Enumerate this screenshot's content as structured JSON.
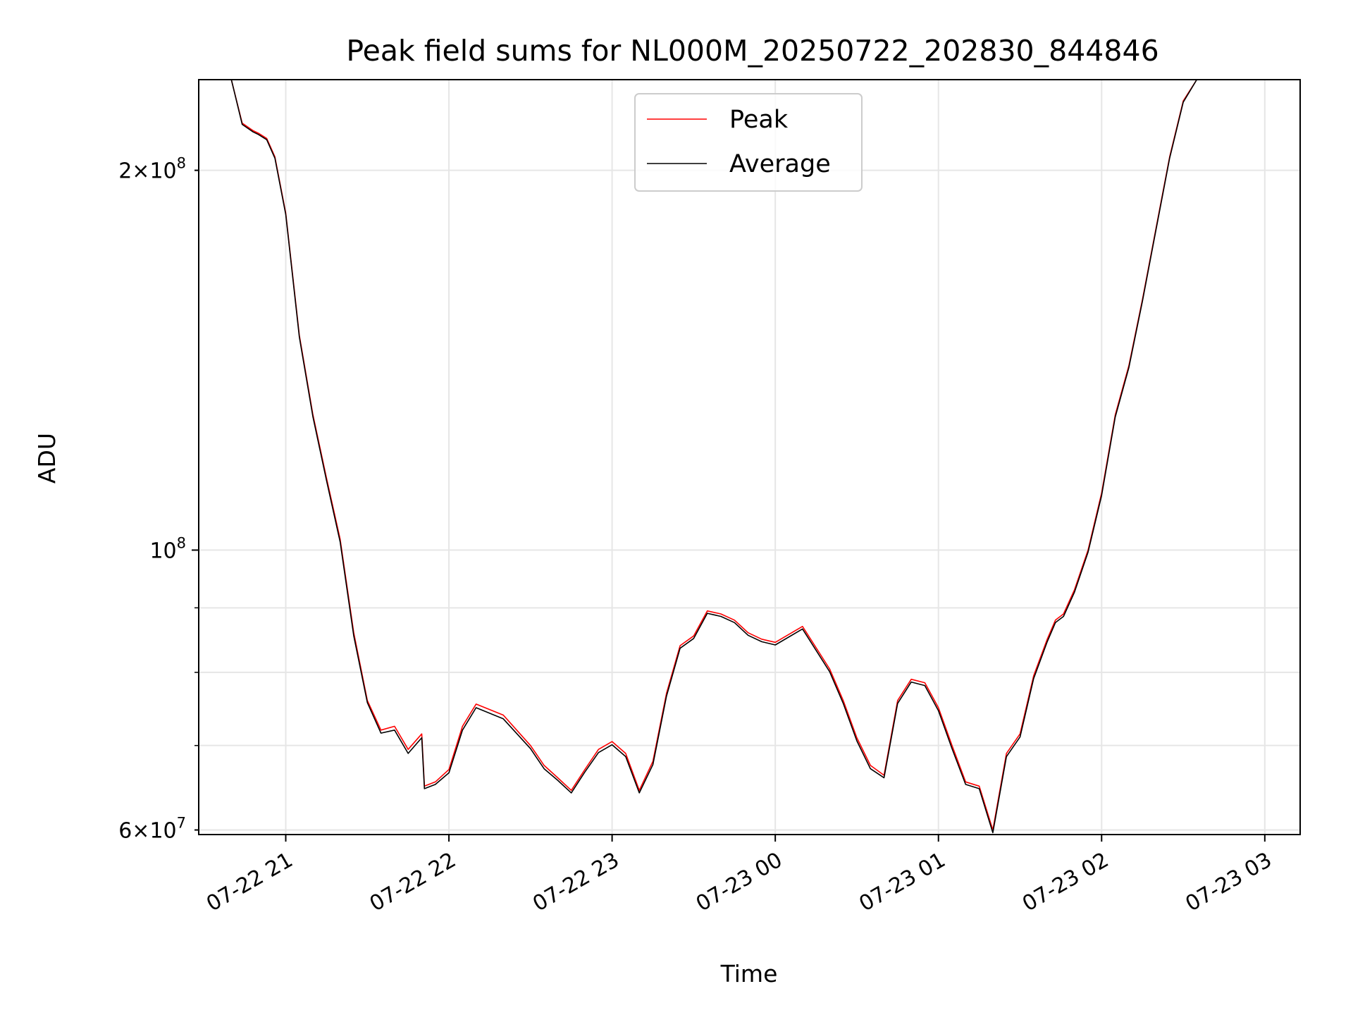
{
  "chart_data": {
    "type": "line",
    "title": "Peak field sums for NL000M_20250722_202830_844846",
    "xlabel": "Time",
    "ylabel": "ADU",
    "y_scale": "log",
    "ylim": [
      59500000,
      236000000
    ],
    "xlim": [
      "2025-07-22 20:28",
      "2025-07-23 03:13"
    ],
    "grid": true,
    "legend_position": "top-center",
    "x_ticks": [
      {
        "t": "2025-07-22 21:00",
        "label": "07-22 21"
      },
      {
        "t": "2025-07-22 22:00",
        "label": "07-22 22"
      },
      {
        "t": "2025-07-22 23:00",
        "label": "07-22 23"
      },
      {
        "t": "2025-07-23 00:00",
        "label": "07-23 00"
      },
      {
        "t": "2025-07-23 01:00",
        "label": "07-23 01"
      },
      {
        "t": "2025-07-23 02:00",
        "label": "07-23 02"
      },
      {
        "t": "2025-07-23 03:00",
        "label": "07-23 03"
      }
    ],
    "y_ticks_major": [
      {
        "value": 100000000,
        "mantissa": "",
        "exponent": "8"
      }
    ],
    "y_ticks_minor_labeled": [
      {
        "value": 60000000,
        "mantissa": "6",
        "exponent": "7"
      },
      {
        "value": 200000000,
        "mantissa": "2",
        "exponent": "8"
      }
    ],
    "y_minor_grid": [
      60000000,
      70000000,
      80000000,
      90000000,
      200000000
    ],
    "series": [
      {
        "name": "Peak",
        "color": "#ff0000",
        "x": [
          "2025-07-22 20:28",
          "2025-07-22 20:40",
          "2025-07-22 20:44",
          "2025-07-22 20:48",
          "2025-07-22 20:50",
          "2025-07-22 20:53",
          "2025-07-22 20:56",
          "2025-07-22 21:00",
          "2025-07-22 21:05",
          "2025-07-22 21:10",
          "2025-07-22 21:15",
          "2025-07-22 21:20",
          "2025-07-22 21:25",
          "2025-07-22 21:30",
          "2025-07-22 21:35",
          "2025-07-22 21:40",
          "2025-07-22 21:45",
          "2025-07-22 21:50",
          "2025-07-22 21:51",
          "2025-07-22 21:55",
          "2025-07-22 22:00",
          "2025-07-22 22:05",
          "2025-07-22 22:10",
          "2025-07-22 22:20",
          "2025-07-22 22:30",
          "2025-07-22 22:35",
          "2025-07-22 22:40",
          "2025-07-22 22:45",
          "2025-07-22 22:50",
          "2025-07-22 22:55",
          "2025-07-22 23:00",
          "2025-07-22 23:05",
          "2025-07-22 23:10",
          "2025-07-22 23:15",
          "2025-07-22 23:20",
          "2025-07-22 23:25",
          "2025-07-22 23:30",
          "2025-07-22 23:35",
          "2025-07-22 23:40",
          "2025-07-22 23:45",
          "2025-07-22 23:50",
          "2025-07-22 23:55",
          "2025-07-23 00:00",
          "2025-07-23 00:10",
          "2025-07-23 00:20",
          "2025-07-23 00:25",
          "2025-07-23 00:30",
          "2025-07-23 00:35",
          "2025-07-23 00:40",
          "2025-07-23 00:45",
          "2025-07-23 00:50",
          "2025-07-23 00:55",
          "2025-07-23 01:00",
          "2025-07-23 01:05",
          "2025-07-23 01:10",
          "2025-07-23 01:15",
          "2025-07-23 01:20",
          "2025-07-23 01:25",
          "2025-07-23 01:30",
          "2025-07-23 01:35",
          "2025-07-23 01:40",
          "2025-07-23 01:43",
          "2025-07-23 01:46",
          "2025-07-23 01:50",
          "2025-07-23 01:55",
          "2025-07-23 02:00",
          "2025-07-23 02:05",
          "2025-07-23 02:10",
          "2025-07-23 02:15",
          "2025-07-23 02:20",
          "2025-07-23 02:25",
          "2025-07-23 02:30",
          "2025-07-23 02:35",
          "2025-07-23 02:40",
          "2025-07-23 02:45",
          "2025-07-23 02:50",
          "2025-07-23 02:55",
          "2025-07-23 02:58",
          "2025-07-23 03:00",
          "2025-07-23 03:13"
        ],
        "y": [
          236000000,
          236000000,
          218000000,
          215000000,
          214000000,
          212000000,
          205000000,
          185000000,
          148000000,
          128000000,
          114000000,
          102000000,
          86000000,
          76000000,
          72000000,
          72500000,
          69500000,
          71500000,
          65000000,
          65500000,
          67000000,
          72500000,
          75500000,
          74000000,
          70000000,
          67500000,
          66000000,
          64500000,
          67000000,
          69500000,
          70500000,
          69000000,
          64500000,
          68000000,
          77000000,
          84000000,
          85500000,
          89500000,
          89000000,
          88000000,
          86000000,
          85000000,
          84500000,
          87000000,
          80500000,
          76000000,
          71000000,
          67500000,
          66300000,
          76000000,
          79000000,
          78500000,
          75000000,
          70000000,
          65500000,
          65000000,
          60000000,
          69000000,
          71500000,
          79500000,
          85000000,
          88000000,
          89000000,
          93000000,
          100000000,
          111000000,
          128000000,
          140000000,
          158000000,
          180000000,
          205000000,
          227000000,
          236000000,
          236000000,
          236000000,
          236000000,
          236000000,
          236000000,
          236000000,
          236000000
        ]
      },
      {
        "name": "Average",
        "color": "#000000",
        "x": [
          "2025-07-22 20:28",
          "2025-07-22 20:40",
          "2025-07-22 20:44",
          "2025-07-22 20:48",
          "2025-07-22 20:50",
          "2025-07-22 20:53",
          "2025-07-22 20:56",
          "2025-07-22 21:00",
          "2025-07-22 21:05",
          "2025-07-22 21:10",
          "2025-07-22 21:15",
          "2025-07-22 21:20",
          "2025-07-22 21:25",
          "2025-07-22 21:30",
          "2025-07-22 21:35",
          "2025-07-22 21:40",
          "2025-07-22 21:45",
          "2025-07-22 21:50",
          "2025-07-22 21:51",
          "2025-07-22 21:55",
          "2025-07-22 22:00",
          "2025-07-22 22:05",
          "2025-07-22 22:10",
          "2025-07-22 22:20",
          "2025-07-22 22:30",
          "2025-07-22 22:35",
          "2025-07-22 22:40",
          "2025-07-22 22:45",
          "2025-07-22 22:50",
          "2025-07-22 22:55",
          "2025-07-22 23:00",
          "2025-07-22 23:05",
          "2025-07-22 23:10",
          "2025-07-22 23:15",
          "2025-07-22 23:20",
          "2025-07-22 23:25",
          "2025-07-22 23:30",
          "2025-07-22 23:35",
          "2025-07-22 23:40",
          "2025-07-22 23:45",
          "2025-07-22 23:50",
          "2025-07-22 23:55",
          "2025-07-23 00:00",
          "2025-07-23 00:10",
          "2025-07-23 00:20",
          "2025-07-23 00:25",
          "2025-07-23 00:30",
          "2025-07-23 00:35",
          "2025-07-23 00:40",
          "2025-07-23 00:45",
          "2025-07-23 00:50",
          "2025-07-23 00:55",
          "2025-07-23 01:00",
          "2025-07-23 01:05",
          "2025-07-23 01:10",
          "2025-07-23 01:15",
          "2025-07-23 01:20",
          "2025-07-23 01:25",
          "2025-07-23 01:30",
          "2025-07-23 01:35",
          "2025-07-23 01:40",
          "2025-07-23 01:43",
          "2025-07-23 01:46",
          "2025-07-23 01:50",
          "2025-07-23 01:55",
          "2025-07-23 02:00",
          "2025-07-23 02:05",
          "2025-07-23 02:10",
          "2025-07-23 02:15",
          "2025-07-23 02:20",
          "2025-07-23 02:25",
          "2025-07-23 02:30",
          "2025-07-23 02:35",
          "2025-07-23 02:40",
          "2025-07-23 02:45",
          "2025-07-23 02:50",
          "2025-07-23 02:55",
          "2025-07-23 02:58",
          "2025-07-23 03:00",
          "2025-07-23 03:13"
        ],
        "y": [
          236000000,
          236000000,
          217500000,
          214500000,
          213500000,
          211500000,
          204500000,
          184500000,
          147500000,
          127500000,
          113500000,
          101500000,
          85500000,
          75700000,
          71600000,
          72000000,
          69000000,
          71000000,
          64700000,
          65200000,
          66600000,
          72000000,
          75000000,
          73500000,
          69600000,
          67100000,
          65700000,
          64200000,
          66700000,
          69100000,
          70100000,
          68600000,
          64200000,
          67600000,
          76600000,
          83600000,
          85100000,
          89100000,
          88600000,
          87600000,
          85600000,
          84600000,
          84100000,
          86600000,
          80100000,
          75600000,
          70600000,
          67100000,
          66000000,
          75600000,
          78600000,
          78100000,
          74600000,
          69600000,
          65200000,
          64700000,
          59700000,
          68600000,
          71100000,
          79100000,
          84600000,
          87600000,
          88600000,
          92600000,
          99600000,
          110500000,
          127500000,
          139500000,
          157500000,
          179500000,
          204500000,
          226500000,
          236000000,
          236000000,
          236000000,
          236000000,
          236000000,
          236000000,
          236000000,
          236000000
        ]
      }
    ]
  }
}
